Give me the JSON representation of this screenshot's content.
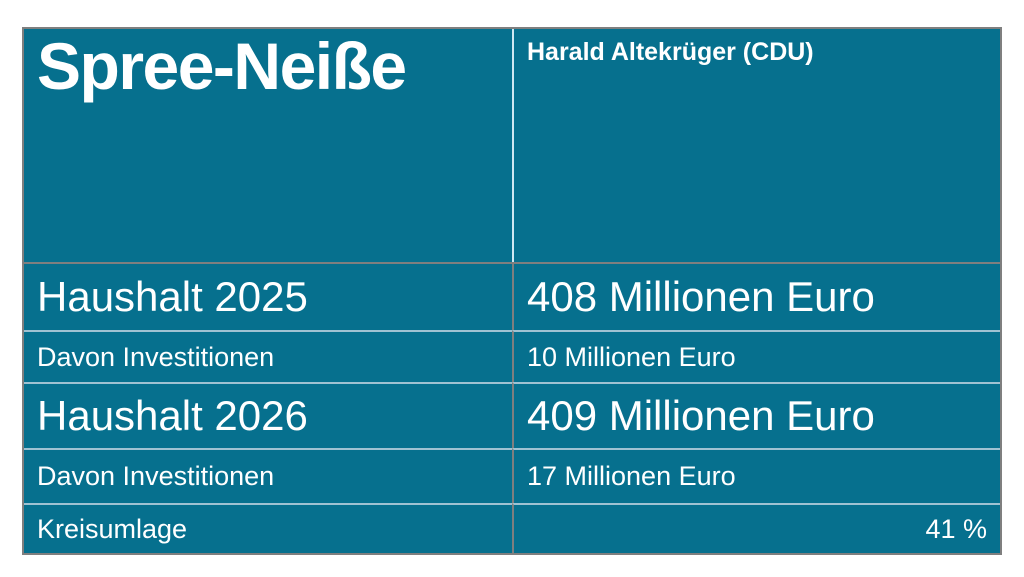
{
  "chart_data": {
    "type": "table",
    "title": "Spree-Neiße",
    "leader": "Harald Altekrüger (CDU)",
    "rows": [
      {
        "label": "Haushalt 2025",
        "value": "408 Millionen Euro",
        "size": "large",
        "value_align": "left"
      },
      {
        "label": "Davon Investitionen",
        "value": "10 Millionen Euro",
        "size": "small",
        "value_align": "left"
      },
      {
        "label": "Haushalt 2026",
        "value": "409 Millionen Euro",
        "size": "large",
        "value_align": "left"
      },
      {
        "label": "Davon Investitionen",
        "value": "17 Millionen Euro",
        "size": "small",
        "value_align": "left"
      },
      {
        "label": "Kreisumlage",
        "value": "41 %",
        "size": "small",
        "value_align": "right"
      }
    ],
    "layout": {
      "columns": 2,
      "grid": "on",
      "header_position": "top"
    }
  },
  "colors": {
    "teal": "#06708E",
    "line-gray": "#7F7F7F",
    "line-light": "#9FC2D2",
    "line-light-header": "#CFE8F2",
    "text": "#FFFFFF"
  }
}
